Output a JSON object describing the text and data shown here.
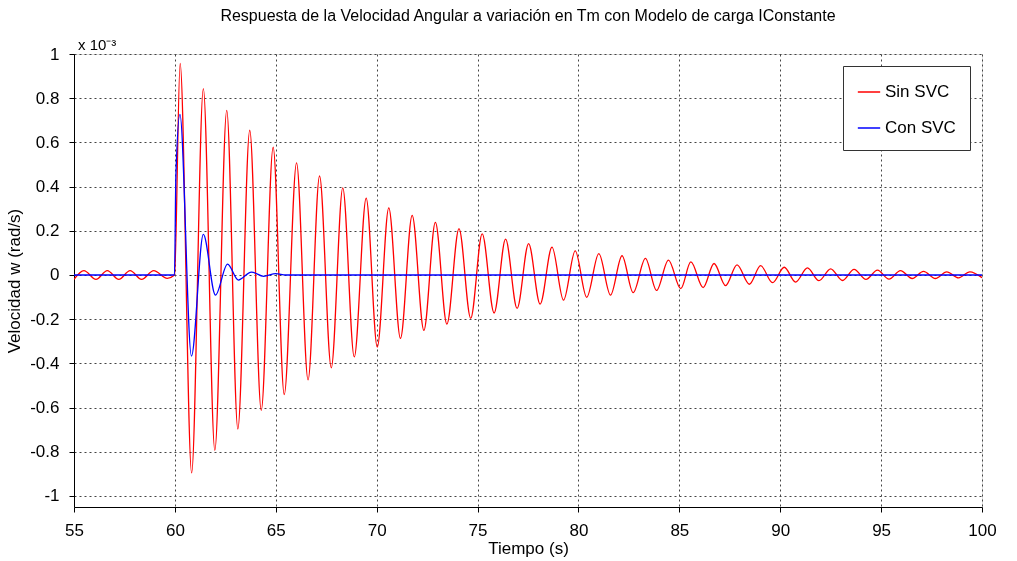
{
  "chart_data": {
    "type": "line",
    "title": "Respuesta de la Velocidad Angular a variación en Tm con Modelo de carga IConstante",
    "xlabel": "Tiempo (s)",
    "ylabel": "Velocidad w (rad/s)",
    "annotations": [
      "x 10⁻³"
    ],
    "xlim": [
      55,
      100
    ],
    "xticks": [
      55,
      60,
      65,
      70,
      75,
      80,
      85,
      90,
      95,
      100
    ],
    "ylim": [
      -1.05,
      1
    ],
    "yticks": [
      -1,
      -0.8,
      -0.6,
      -0.4,
      -0.2,
      0,
      0.2,
      0.4,
      0.6,
      0.8,
      1
    ],
    "grid": true,
    "legend": "top right",
    "line_style": "solid",
    "marker": "none",
    "series": [
      {
        "name": "Sin SVC",
        "color": "#ff0000",
        "x": [
          55.0,
          55.49,
          56.09,
          56.65,
          57.22,
          57.78,
          58.35,
          58.95,
          59.62,
          59.98,
          60.26,
          60.83,
          61.41,
          61.98,
          62.57,
          63.12,
          63.71,
          64.28,
          64.87,
          65.42,
          66.03,
          66.6,
          67.17,
          67.75,
          68.32,
          68.89,
          69.48,
          70.03,
          70.6,
          71.18,
          71.76,
          72.34,
          72.91,
          73.48,
          74.08,
          74.66,
          75.23,
          75.82,
          76.39,
          76.96,
          77.53,
          78.1,
          78.69,
          79.26,
          79.84,
          80.41,
          81.01,
          81.59,
          82.16,
          82.71,
          83.32,
          83.87,
          84.46,
          85.07,
          85.57,
          86.18,
          86.72,
          87.29,
          87.86,
          88.47,
          89.03,
          89.62,
          90.2,
          90.76,
          91.35,
          91.92,
          92.5,
          93.09,
          93.66,
          94.25,
          94.82,
          95.39,
          95.96,
          96.54,
          97.1,
          97.69,
          98.25,
          98.84,
          99.4,
          100.0
        ],
        "values": [
          -0.02,
          0.02,
          -0.02,
          0.02,
          -0.02,
          0.02,
          -0.02,
          0.02,
          -0.015,
          0.0,
          0.957,
          -0.896,
          0.843,
          -0.794,
          0.745,
          -0.697,
          0.655,
          -0.613,
          0.578,
          -0.541,
          0.507,
          -0.475,
          0.448,
          -0.42,
          0.394,
          -0.371,
          0.348,
          -0.326,
          0.304,
          -0.287,
          0.27,
          -0.251,
          0.238,
          -0.222,
          0.21,
          -0.196,
          0.186,
          -0.172,
          0.162,
          -0.151,
          0.142,
          -0.132,
          0.126,
          -0.114,
          0.109,
          -0.101,
          0.097,
          -0.091,
          0.087,
          -0.08,
          0.075,
          -0.07,
          0.067,
          -0.062,
          0.059,
          -0.057,
          0.052,
          -0.048,
          0.046,
          -0.042,
          0.042,
          -0.035,
          0.035,
          -0.032,
          0.032,
          -0.026,
          0.028,
          -0.025,
          0.025,
          -0.02,
          0.022,
          -0.019,
          0.02,
          -0.016,
          0.016,
          -0.016,
          0.014,
          -0.013,
          0.014,
          -0.012
        ]
      },
      {
        "name": "Con SVC",
        "color": "#0000ff",
        "x": [
          55.0,
          59.98,
          60.05,
          60.25,
          60.82,
          61.41,
          62.01,
          62.61,
          63.14,
          63.79,
          64.4,
          65.0,
          65.5,
          100.0
        ],
        "values": [
          0.0,
          0.0,
          0.45,
          0.727,
          -0.367,
          0.184,
          -0.091,
          0.049,
          -0.023,
          0.013,
          -0.006,
          0.006,
          0.0,
          0.0
        ]
      }
    ]
  }
}
